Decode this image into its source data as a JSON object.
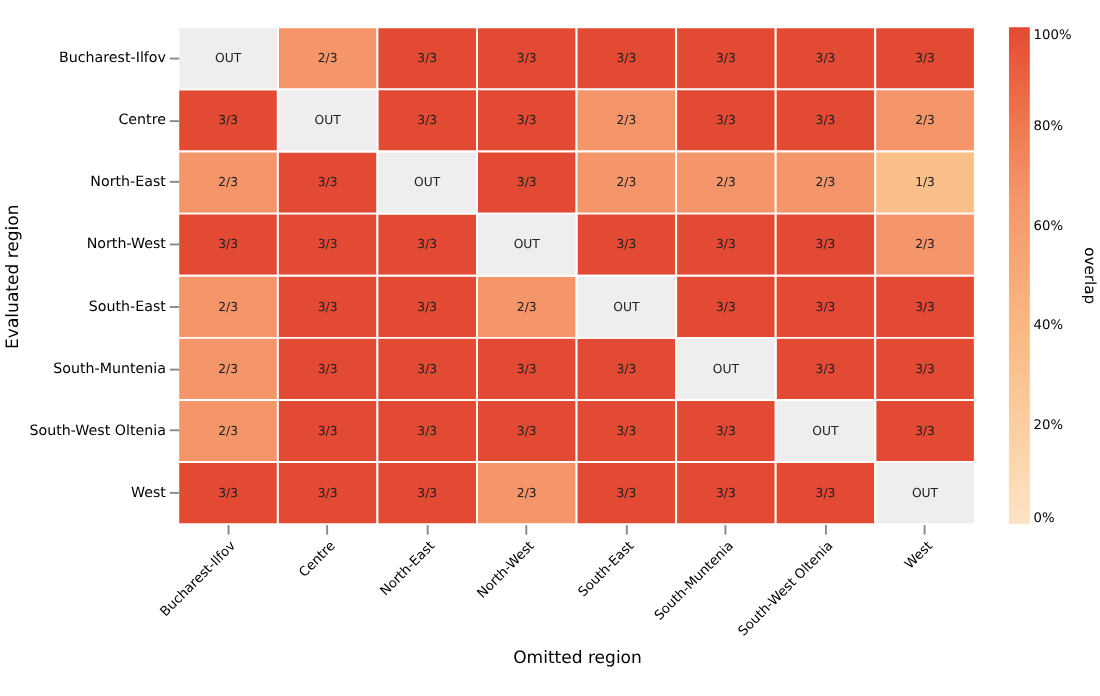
{
  "chart_data": {
    "type": "heatmap",
    "xlabel": "Omitted region",
    "ylabel": "Evaluated region",
    "clabel": "overlap",
    "categories": [
      "Bucharest-Ilfov",
      "Centre",
      "North-East",
      "North-West",
      "South-East",
      "South-Muntenia",
      "South-West Oltenia",
      "West"
    ],
    "y_categories": [
      "Bucharest-Ilfov",
      "Centre",
      "North-East",
      "North-West",
      "South-East",
      "South-Muntenia",
      "South-West Oltenia",
      "West"
    ],
    "cells": [
      [
        null,
        0.6667,
        1,
        1,
        1,
        1,
        1,
        1
      ],
      [
        1,
        null,
        1,
        1,
        0.6667,
        1,
        1,
        0.6667
      ],
      [
        0.6667,
        1,
        null,
        1,
        0.6667,
        0.6667,
        0.6667,
        0.3333
      ],
      [
        1,
        1,
        1,
        null,
        1,
        1,
        1,
        0.6667
      ],
      [
        0.6667,
        1,
        1,
        0.6667,
        null,
        1,
        1,
        1
      ],
      [
        0.6667,
        1,
        1,
        1,
        1,
        null,
        1,
        1
      ],
      [
        0.6667,
        1,
        1,
        1,
        1,
        1,
        null,
        1
      ],
      [
        1,
        1,
        1,
        0.6667,
        1,
        1,
        1,
        null
      ]
    ],
    "cell_labels": [
      [
        "OUT",
        "2/3",
        "3/3",
        "3/3",
        "3/3",
        "3/3",
        "3/3",
        "3/3"
      ],
      [
        "3/3",
        "OUT",
        "3/3",
        "3/3",
        "2/3",
        "3/3",
        "3/3",
        "2/3"
      ],
      [
        "2/3",
        "3/3",
        "OUT",
        "3/3",
        "2/3",
        "2/3",
        "2/3",
        "1/3"
      ],
      [
        "3/3",
        "3/3",
        "3/3",
        "OUT",
        "3/3",
        "3/3",
        "3/3",
        "2/3"
      ],
      [
        "2/3",
        "3/3",
        "3/3",
        "2/3",
        "OUT",
        "3/3",
        "3/3",
        "3/3"
      ],
      [
        "2/3",
        "3/3",
        "3/3",
        "3/3",
        "3/3",
        "OUT",
        "3/3",
        "3/3"
      ],
      [
        "2/3",
        "3/3",
        "3/3",
        "3/3",
        "3/3",
        "3/3",
        "OUT",
        "3/3"
      ],
      [
        "3/3",
        "3/3",
        "3/3",
        "2/3",
        "3/3",
        "3/3",
        "3/3",
        "OUT"
      ]
    ],
    "clim": [
      0,
      1
    ],
    "cticks": [
      {
        "value": 0,
        "label": "0%"
      },
      {
        "value": 0.2,
        "label": "20%"
      },
      {
        "value": 0.4,
        "label": "40%"
      },
      {
        "value": 0.6,
        "label": "60%"
      },
      {
        "value": 0.8,
        "label": "80%"
      },
      {
        "value": 1,
        "label": "100%"
      }
    ]
  }
}
